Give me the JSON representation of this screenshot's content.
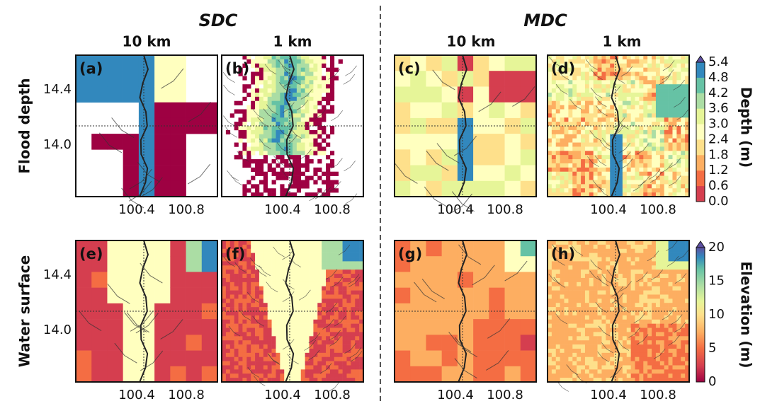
{
  "header": {
    "left_title": "SDC",
    "right_title": "MDC"
  },
  "columns": [
    "10 km",
    "1 km",
    "10 km",
    "1 km"
  ],
  "rows": [
    "Flood depth",
    "Water surface"
  ],
  "panels": [
    "(a)",
    "(b)",
    "(c)",
    "(d)",
    "(e)",
    "(f)",
    "(g)",
    "(h)"
  ],
  "y_ticks": [
    "14.4",
    "14.0"
  ],
  "x_ticks": [
    "100.4",
    "100.8"
  ],
  "depth_colorbar": {
    "label": "Depth (m)",
    "ticks": [
      "5.4",
      "4.8",
      "4.2",
      "3.6",
      "3.0",
      "2.4",
      "1.8",
      "1.2",
      "0.6",
      "0.0"
    ]
  },
  "elevation_colorbar": {
    "label": "Elevation (m)",
    "ticks": [
      "20",
      "15",
      "10",
      "5",
      "0"
    ]
  }
}
